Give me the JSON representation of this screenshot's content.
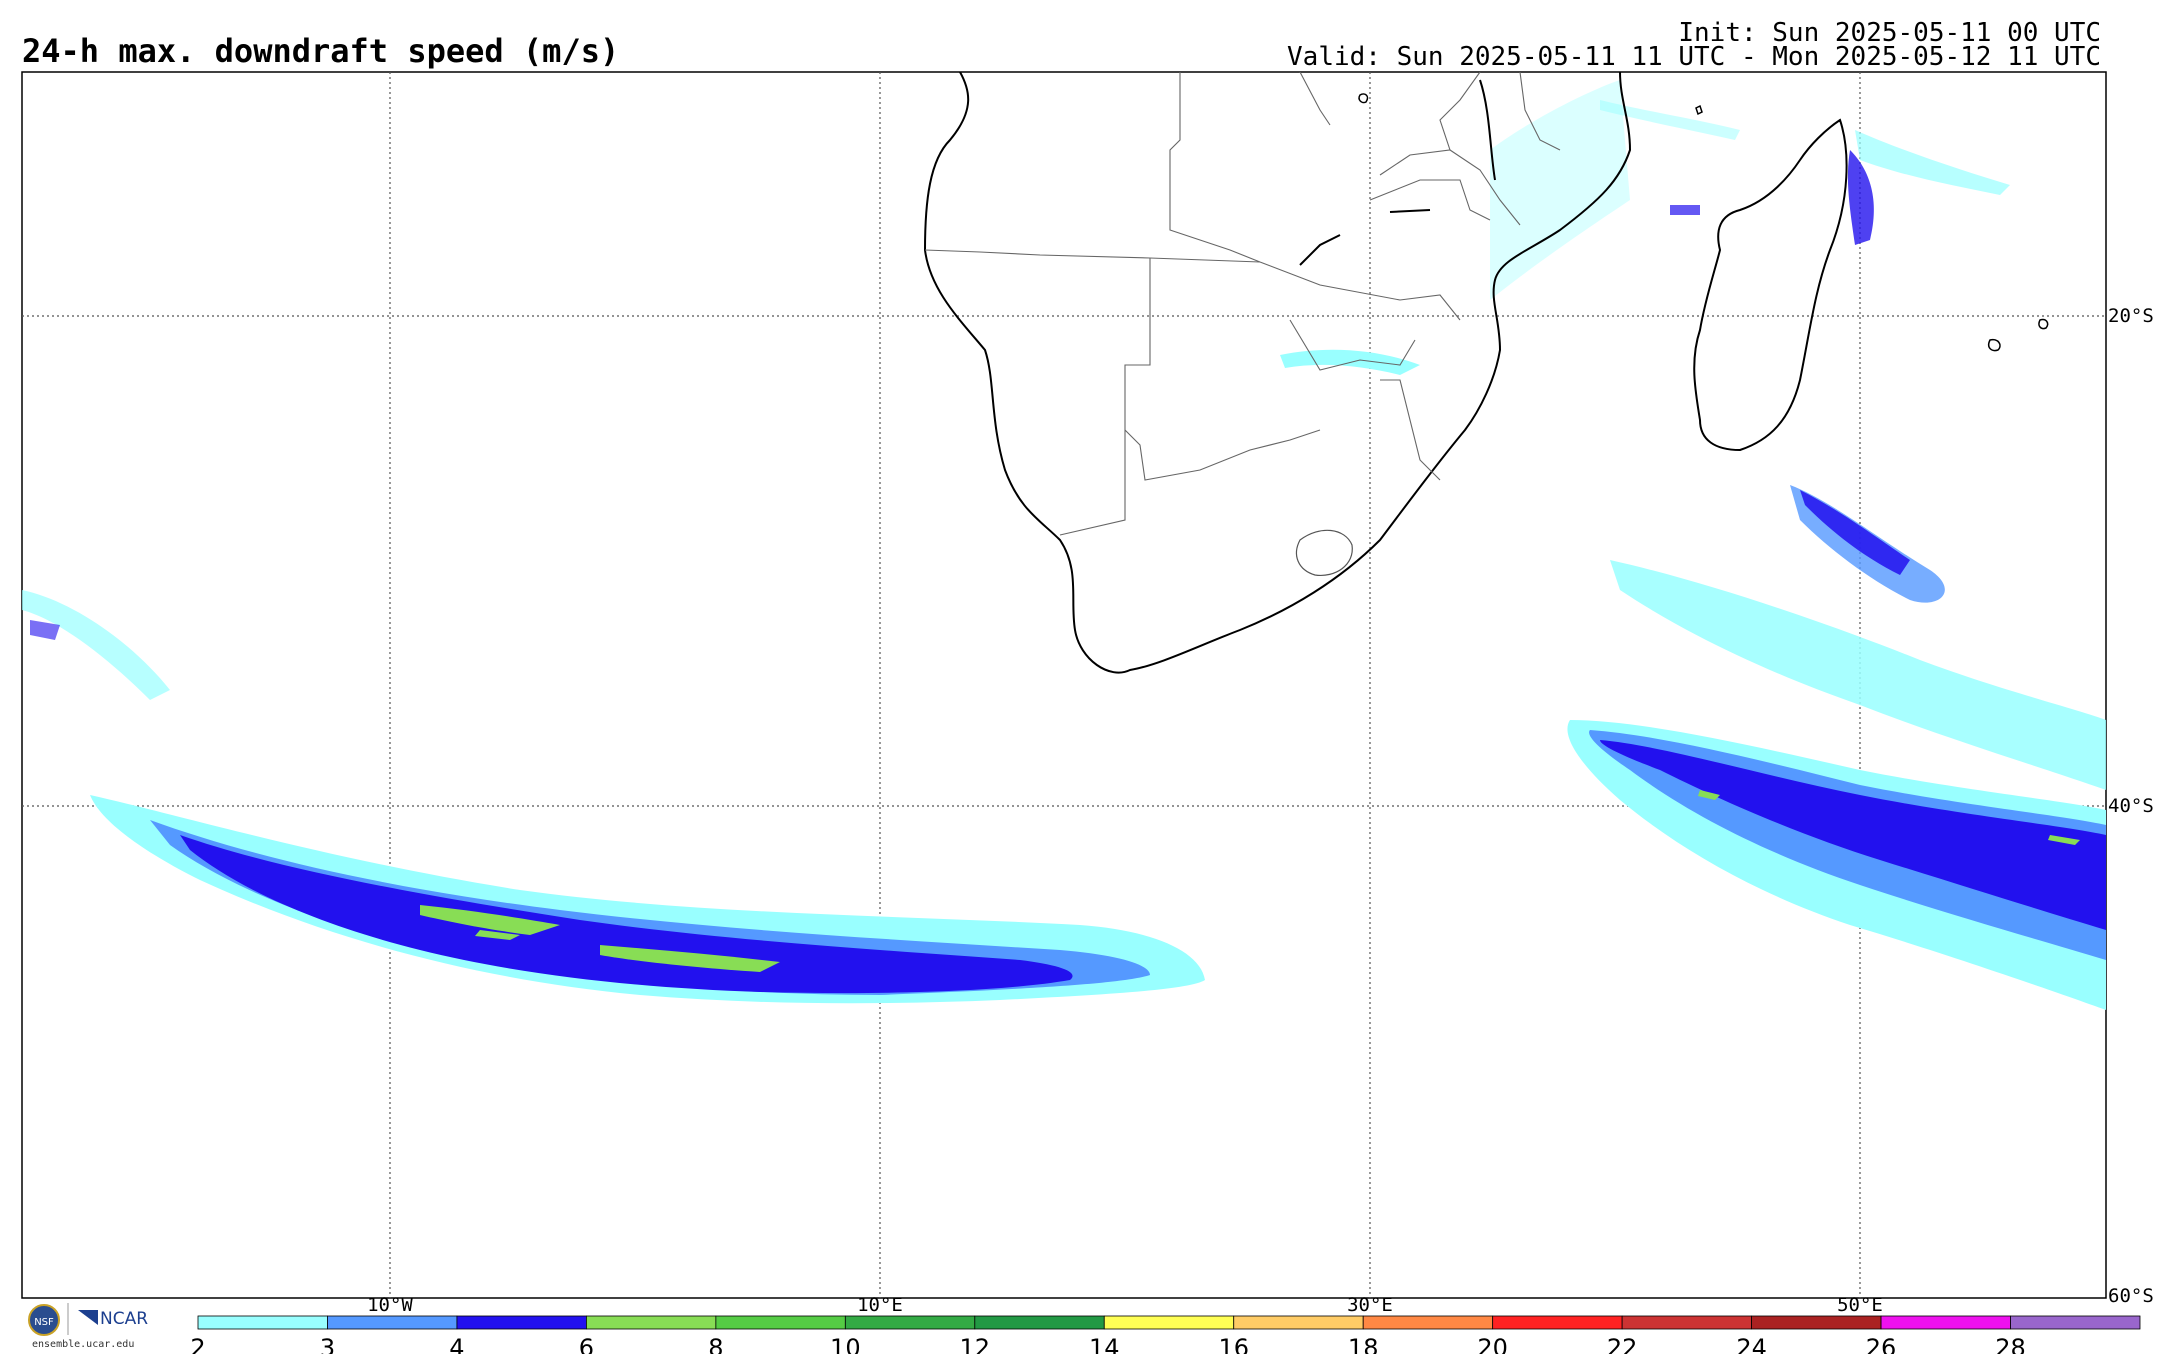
{
  "title": "24-h max. downdraft speed (m/s)",
  "init": "Init: Sun 2025-05-11 00 UTC",
  "valid": "Valid: Sun 2025-05-11 11 UTC - Mon 2025-05-12 11 UTC",
  "lon_labels": [
    {
      "lon": -10,
      "label": "10°W"
    },
    {
      "lon": 10,
      "label": "10°E"
    },
    {
      "lon": 30,
      "label": "30°E"
    },
    {
      "lon": 50,
      "label": "50°E"
    }
  ],
  "lat_labels": [
    {
      "lat": -20,
      "label": "20°S"
    },
    {
      "lat": -40,
      "label": "40°S"
    },
    {
      "lat": -60,
      "label": "60°S"
    }
  ],
  "colorbar": {
    "ticks": [
      "2",
      "3",
      "4",
      "6",
      "8",
      "10",
      "12",
      "14",
      "16",
      "18",
      "20",
      "22",
      "24",
      "26",
      "28"
    ],
    "colors": [
      "#99ffff",
      "#5599ff",
      "#2211ee",
      "#88dd55",
      "#55cc44",
      "#33aa44",
      "#229944",
      "#ffff55",
      "#ffcc66",
      "#ff8844",
      "#ff2222",
      "#cc3333",
      "#aa2222",
      "#ee11ee",
      "#9966cc"
    ]
  },
  "logos": {
    "nsf": "NSF",
    "ncar": "NCAR",
    "url": "ensemble.ucar.edu"
  },
  "colors": {
    "light_cyan": "#99ffff",
    "medium_blue": "#5599ff",
    "dark_blue": "#2211ee",
    "green": "#88dd55"
  }
}
